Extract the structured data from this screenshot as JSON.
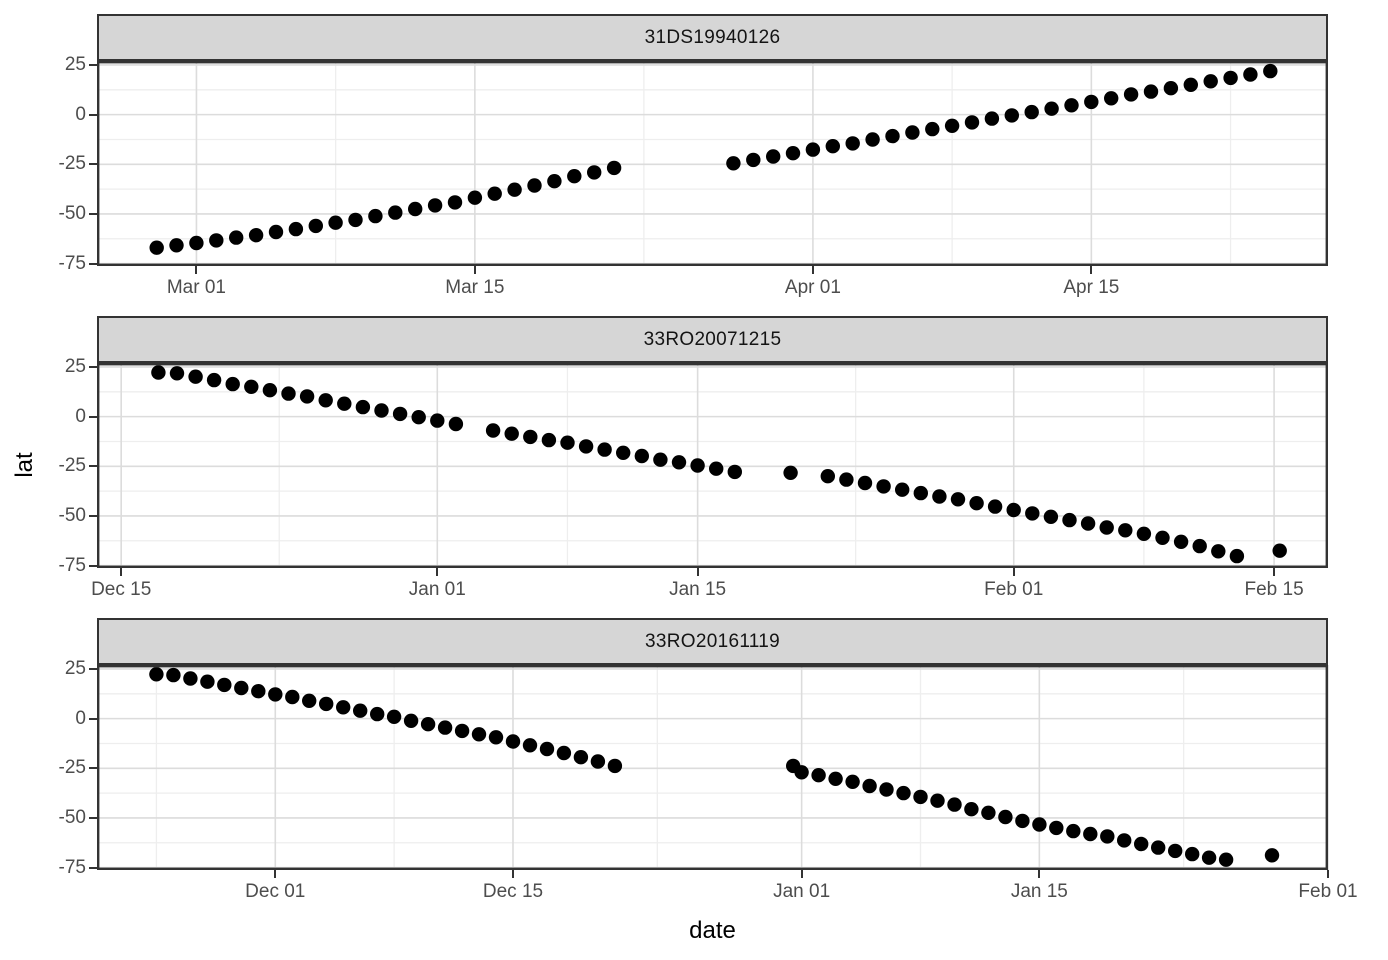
{
  "chart_data": {
    "type": "scatter",
    "xlabel": "date",
    "ylabel": "lat",
    "point_color": "#000000",
    "point_radius_px": 7.2,
    "legend": "none",
    "grid": "major+minor",
    "y_axis": {
      "lim": [
        -76.2,
        27
      ],
      "major_ticks": [
        25,
        0,
        -25,
        -50,
        -75
      ],
      "major_labels": [
        "25",
        "0",
        "-25",
        "-50",
        "-75"
      ],
      "minor_ticks": [
        12.5,
        -12.5,
        -37.5,
        -62.5
      ]
    },
    "facets": [
      {
        "label": "31DS19940126",
        "x_unit": "days since Mar 01",
        "xlim": [
          -5,
          56.9
        ],
        "x_major": [
          {
            "day": 0,
            "label": "Mar 01"
          },
          {
            "day": 14,
            "label": "Mar 15"
          },
          {
            "day": 31,
            "label": "Apr 01"
          },
          {
            "day": 45,
            "label": "Apr 15"
          }
        ],
        "x_minor": [
          7,
          22.5,
          38,
          52
        ],
        "points": [
          [
            -2,
            -67
          ],
          [
            -1,
            -65.8
          ],
          [
            0,
            -64.6
          ],
          [
            1,
            -63.3
          ],
          [
            2,
            -61.9
          ],
          [
            3,
            -60.7
          ],
          [
            4,
            -59.1
          ],
          [
            5,
            -57.6
          ],
          [
            6,
            -56
          ],
          [
            7,
            -54.4
          ],
          [
            8,
            -53
          ],
          [
            9,
            -51.1
          ],
          [
            10,
            -49.3
          ],
          [
            11,
            -47.5
          ],
          [
            12,
            -45.7
          ],
          [
            13,
            -44.2
          ],
          [
            14,
            -41.8
          ],
          [
            15,
            -39.8
          ],
          [
            16,
            -37.8
          ],
          [
            17,
            -35.7
          ],
          [
            18,
            -33.5
          ],
          [
            19,
            -31
          ],
          [
            20,
            -29.1
          ],
          [
            21,
            -26.8
          ],
          [
            27,
            -24.5
          ],
          [
            28,
            -22.8
          ],
          [
            29,
            -21.1
          ],
          [
            30,
            -19.4
          ],
          [
            31,
            -17.6
          ],
          [
            32,
            -15.9
          ],
          [
            33,
            -14.5
          ],
          [
            34,
            -12.5
          ],
          [
            35,
            -10.8
          ],
          [
            36,
            -9
          ],
          [
            37,
            -7.3
          ],
          [
            38,
            -5.6
          ],
          [
            39,
            -3.9
          ],
          [
            40,
            -2
          ],
          [
            41,
            -0.4
          ],
          [
            42,
            1.3
          ],
          [
            43,
            3
          ],
          [
            44,
            4.7
          ],
          [
            45,
            6.4
          ],
          [
            46,
            8.2
          ],
          [
            47,
            10.2
          ],
          [
            48,
            11.6
          ],
          [
            49,
            13.3
          ],
          [
            50,
            15
          ],
          [
            51,
            16.8
          ],
          [
            52,
            18.5
          ],
          [
            53,
            20.2
          ],
          [
            54,
            21.9
          ]
        ]
      },
      {
        "label": "33RO20071215",
        "x_unit": "days since Dec 15",
        "xlim": [
          -1.3,
          64.9
        ],
        "x_major": [
          {
            "day": 0,
            "label": "Dec 15"
          },
          {
            "day": 17,
            "label": "Jan 01"
          },
          {
            "day": 31,
            "label": "Jan 15"
          },
          {
            "day": 48,
            "label": "Feb 01"
          },
          {
            "day": 62,
            "label": "Feb 15"
          }
        ],
        "x_minor": [
          8.5,
          24,
          39.5,
          55
        ],
        "points": [
          [
            2,
            22.2
          ],
          [
            3,
            21.8
          ],
          [
            4,
            20.1
          ],
          [
            5,
            18.4
          ],
          [
            6,
            16.4
          ],
          [
            7,
            15
          ],
          [
            8,
            13.3
          ],
          [
            9,
            11.6
          ],
          [
            10,
            10.2
          ],
          [
            11,
            8.2
          ],
          [
            12,
            6.5
          ],
          [
            13,
            4.8
          ],
          [
            14,
            3.1
          ],
          [
            15,
            1.4
          ],
          [
            16,
            -0.3
          ],
          [
            17,
            -2
          ],
          [
            18,
            -3.7
          ],
          [
            20,
            -7
          ],
          [
            21,
            -8.6
          ],
          [
            22,
            -10.2
          ],
          [
            23,
            -11.8
          ],
          [
            24,
            -13.1
          ],
          [
            25,
            -15
          ],
          [
            26,
            -16.6
          ],
          [
            27,
            -18.2
          ],
          [
            28,
            -19.8
          ],
          [
            29,
            -21.7
          ],
          [
            30,
            -23
          ],
          [
            31,
            -24.6
          ],
          [
            32,
            -26.2
          ],
          [
            33,
            -27.8
          ],
          [
            36,
            -28.3
          ],
          [
            38,
            -30
          ],
          [
            39,
            -31.7
          ],
          [
            40,
            -33.4
          ],
          [
            41,
            -35.1
          ],
          [
            42,
            -36.8
          ],
          [
            43,
            -38.5
          ],
          [
            44,
            -40.2
          ],
          [
            45,
            -41.6
          ],
          [
            46,
            -43.6
          ],
          [
            47,
            -45.3
          ],
          [
            48,
            -47
          ],
          [
            49,
            -48.7
          ],
          [
            50,
            -50.4
          ],
          [
            51,
            -52.1
          ],
          [
            52,
            -53.8
          ],
          [
            53,
            -55.8
          ],
          [
            54,
            -57.2
          ],
          [
            55,
            -59
          ],
          [
            56,
            -61
          ],
          [
            57,
            -63
          ],
          [
            58,
            -65.2
          ],
          [
            59,
            -67.8
          ],
          [
            60,
            -70.2
          ],
          [
            62.3,
            -67.5
          ]
        ]
      },
      {
        "label": "33RO20161119",
        "x_unit": "days since Dec 01",
        "xlim": [
          -10.5,
          62
        ],
        "x_major": [
          {
            "day": 0,
            "label": "Dec 01"
          },
          {
            "day": 14,
            "label": "Dec 15"
          },
          {
            "day": 31,
            "label": "Jan 01"
          },
          {
            "day": 45,
            "label": "Jan 15"
          },
          {
            "day": 62,
            "label": "Feb 01"
          }
        ],
        "x_minor": [
          -7,
          7,
          22.5,
          38,
          53.5
        ],
        "points": [
          [
            -7,
            22.3
          ],
          [
            -6,
            21.9
          ],
          [
            -5,
            20.2
          ],
          [
            -4,
            18.6
          ],
          [
            -3,
            17
          ],
          [
            -2,
            15.4
          ],
          [
            -1,
            13.8
          ],
          [
            0,
            12.2
          ],
          [
            1,
            10.9
          ],
          [
            2,
            9
          ],
          [
            3,
            7.4
          ],
          [
            4,
            5.7
          ],
          [
            5,
            4
          ],
          [
            6,
            2.3
          ],
          [
            7,
            0.9
          ],
          [
            8,
            -1.1
          ],
          [
            9,
            -2.8
          ],
          [
            10,
            -4.5
          ],
          [
            11,
            -6.2
          ],
          [
            12,
            -7.9
          ],
          [
            13,
            -9.4
          ],
          [
            14,
            -11.5
          ],
          [
            15,
            -13.4
          ],
          [
            16,
            -15.3
          ],
          [
            17,
            -17.3
          ],
          [
            18,
            -19.4
          ],
          [
            19,
            -21.6
          ],
          [
            20,
            -23.8
          ],
          [
            30.5,
            -23.8
          ],
          [
            31,
            -27
          ],
          [
            32,
            -28.5
          ],
          [
            33,
            -30.3
          ],
          [
            34,
            -31.8
          ],
          [
            35,
            -33.9
          ],
          [
            36,
            -35.7
          ],
          [
            37,
            -37.5
          ],
          [
            38,
            -39.4
          ],
          [
            39,
            -41.3
          ],
          [
            40,
            -43.3
          ],
          [
            41,
            -45.6
          ],
          [
            42,
            -47.4
          ],
          [
            43,
            -49.5
          ],
          [
            44,
            -51.5
          ],
          [
            45,
            -53.3
          ],
          [
            46,
            -55
          ],
          [
            47,
            -56.6
          ],
          [
            48,
            -58.1
          ],
          [
            49,
            -59.3
          ],
          [
            50,
            -61.3
          ],
          [
            51,
            -63.1
          ],
          [
            52,
            -64.9
          ],
          [
            53,
            -66.6
          ],
          [
            54,
            -68.2
          ],
          [
            55,
            -70
          ],
          [
            56,
            -71
          ],
          [
            58.7,
            -68.8
          ]
        ]
      }
    ]
  },
  "style": {
    "background": "#ffffff",
    "strip_fill": "#d6d6d6",
    "strip_border": "#333333",
    "panel_border": "#333333",
    "grid_major": "#dcdcdc",
    "grid_minor": "#eeeeee",
    "tick_label_color": "#4d4d4d",
    "tick_mark_color": "#333333",
    "axis_title_color": "#000000"
  }
}
